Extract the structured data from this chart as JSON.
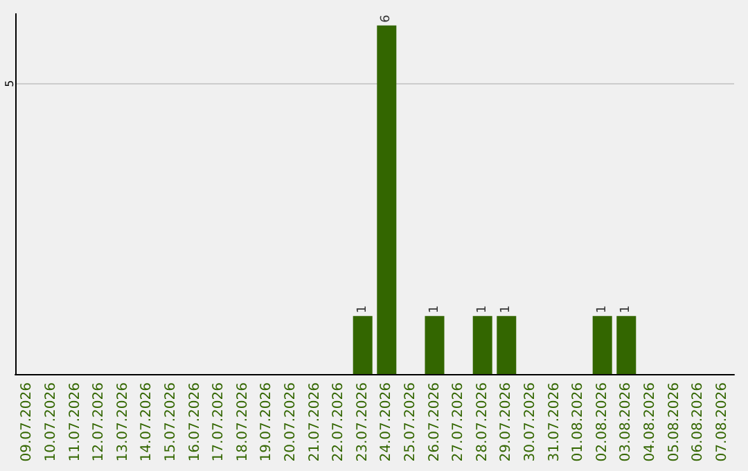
{
  "chart_data": {
    "type": "bar",
    "categories": [
      "09.07.2026",
      "10.07.2026",
      "11.07.2026",
      "12.07.2026",
      "13.07.2026",
      "14.07.2026",
      "15.07.2026",
      "16.07.2026",
      "17.07.2026",
      "18.07.2026",
      "19.07.2026",
      "20.07.2026",
      "21.07.2026",
      "22.07.2026",
      "23.07.2026",
      "24.07.2026",
      "25.07.2026",
      "26.07.2026",
      "27.07.2026",
      "28.07.2026",
      "29.07.2026",
      "30.07.2026",
      "31.07.2026",
      "01.08.2026",
      "02.08.2026",
      "03.08.2026",
      "04.08.2026",
      "05.08.2026",
      "06.08.2026",
      "07.08.2026"
    ],
    "values": [
      null,
      null,
      null,
      null,
      null,
      null,
      null,
      null,
      null,
      null,
      null,
      null,
      null,
      null,
      1,
      6,
      null,
      1,
      null,
      1,
      1,
      null,
      null,
      null,
      1,
      1,
      null,
      null,
      null,
      null
    ],
    "value_labels": [
      null,
      null,
      null,
      null,
      null,
      null,
      null,
      null,
      null,
      null,
      null,
      null,
      null,
      null,
      "1",
      "6",
      null,
      "1",
      null,
      "1",
      "1",
      null,
      null,
      null,
      "1",
      "1",
      null,
      null,
      null,
      null
    ],
    "color": "#336600",
    "ylim": [
      0,
      6.2
    ],
    "yticks": [
      5
    ],
    "grid": "y"
  }
}
